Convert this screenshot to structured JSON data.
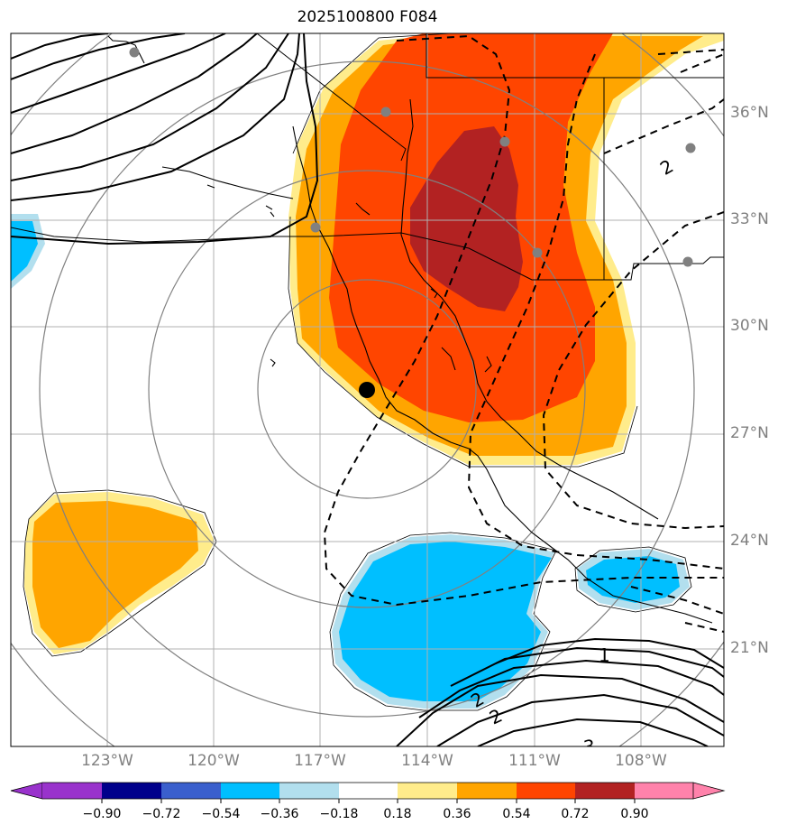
{
  "title": "2025100800 F084",
  "colors": {
    "red_dark": "#b22222",
    "red_orange": "#ff4500",
    "orange": "#ffa500",
    "yellow": "#ffec8b",
    "light_blue": "#b2dfff",
    "cyan": "#00bfff",
    "gray_ring": "#808080",
    "grid": "#b0b0b0"
  },
  "longitude_labels": [
    "123°W",
    "120°W",
    "117°W",
    "114°W",
    "111°W",
    "108°W"
  ],
  "latitude_labels": [
    "36°N",
    "33°N",
    "30°N",
    "27°N",
    "24°N",
    "21°N"
  ],
  "contour_labels": [
    "2",
    "1",
    "2",
    "2",
    "3"
  ],
  "colorbar": {
    "colors": [
      "#9932cc",
      "#00008b",
      "#3a5fcd",
      "#00bfff",
      "#b2dfee",
      "#ffffff",
      "#ffec8b",
      "#ffa500",
      "#ff4500",
      "#b22222",
      "#ff82ab"
    ],
    "labels": [
      "−0.90",
      "−0.72",
      "−0.54",
      "−0.36",
      "−0.18",
      "0.18",
      "0.36",
      "0.54",
      "0.72",
      "0.90"
    ]
  },
  "markers": {
    "center_point": "black-dot",
    "station_points": "gray-dots"
  }
}
